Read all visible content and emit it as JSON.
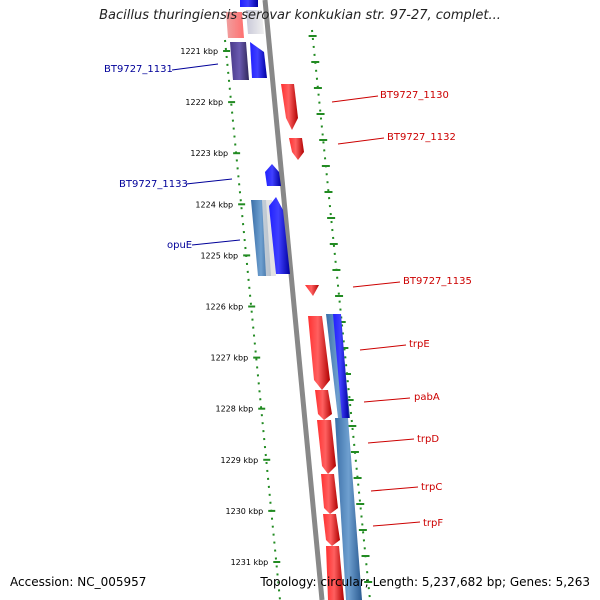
{
  "title": "Bacillus thuringiensis serovar konkukian str. 97-27, complet...",
  "footer": {
    "accession": "Accession: NC_005957",
    "stats": "Topology: circular; Length: 5,237,682 bp; Genes: 5,263"
  },
  "ticks": [
    "1221 kbp",
    "1222 kbp",
    "1223 kbp",
    "1224 kbp",
    "1225 kbp",
    "1226 kbp",
    "1227 kbp",
    "1228 kbp",
    "1229 kbp",
    "1230 kbp",
    "1231 kbp"
  ],
  "labels": {
    "left": [
      "BT9727_1131",
      "BT9727_1133",
      "opuE"
    ],
    "right": [
      "BT9727_1130",
      "BT9727_1132",
      "BT9727_1135",
      "trpE",
      "pabA",
      "trpD",
      "trpC",
      "trpF"
    ]
  },
  "colors": {
    "forward_strand": "#0000ff",
    "reverse_strand": "#ff0000",
    "left_label": "#000099",
    "right_label": "#cc0000",
    "dotted_guide": "#228b22",
    "backbone": "#888888"
  }
}
